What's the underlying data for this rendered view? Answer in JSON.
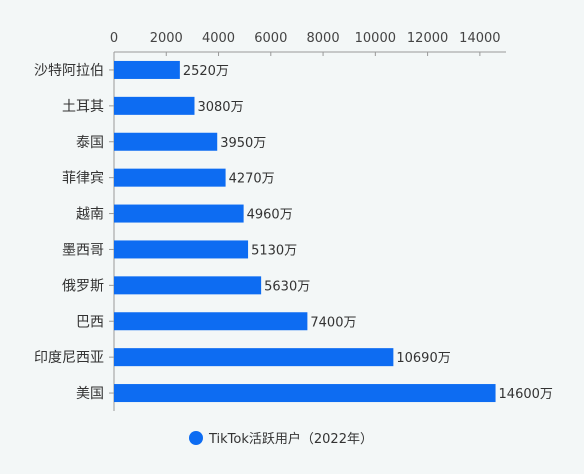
{
  "chart_data": {
    "type": "bar",
    "orientation": "horizontal",
    "categories": [
      "沙特阿拉伯",
      "土耳其",
      "泰国",
      "菲律宾",
      "越南",
      "墨西哥",
      "俄罗斯",
      "巴西",
      "印度尼西亚",
      "美国"
    ],
    "series": [
      {
        "name": "TikTok活跃用户（2022年）",
        "values": [
          2520,
          3080,
          3950,
          4270,
          4960,
          5130,
          5630,
          7400,
          10690,
          14600
        ],
        "labels": [
          "2520万",
          "3080万",
          "3950万",
          "4270万",
          "4960万",
          "5130万",
          "5630万",
          "7400万",
          "10690万",
          "14600万"
        ],
        "color": "#0d6cf2"
      }
    ],
    "xlim": [
      0,
      15000
    ],
    "ticks": [
      0,
      2000,
      4000,
      6000,
      8000,
      10000,
      12000,
      14000
    ],
    "tick_labels": [
      "0",
      "2000",
      "4000",
      "6000",
      "8000",
      "10000",
      "12000",
      "14000"
    ],
    "grid": false,
    "legend_position": "bottom"
  }
}
